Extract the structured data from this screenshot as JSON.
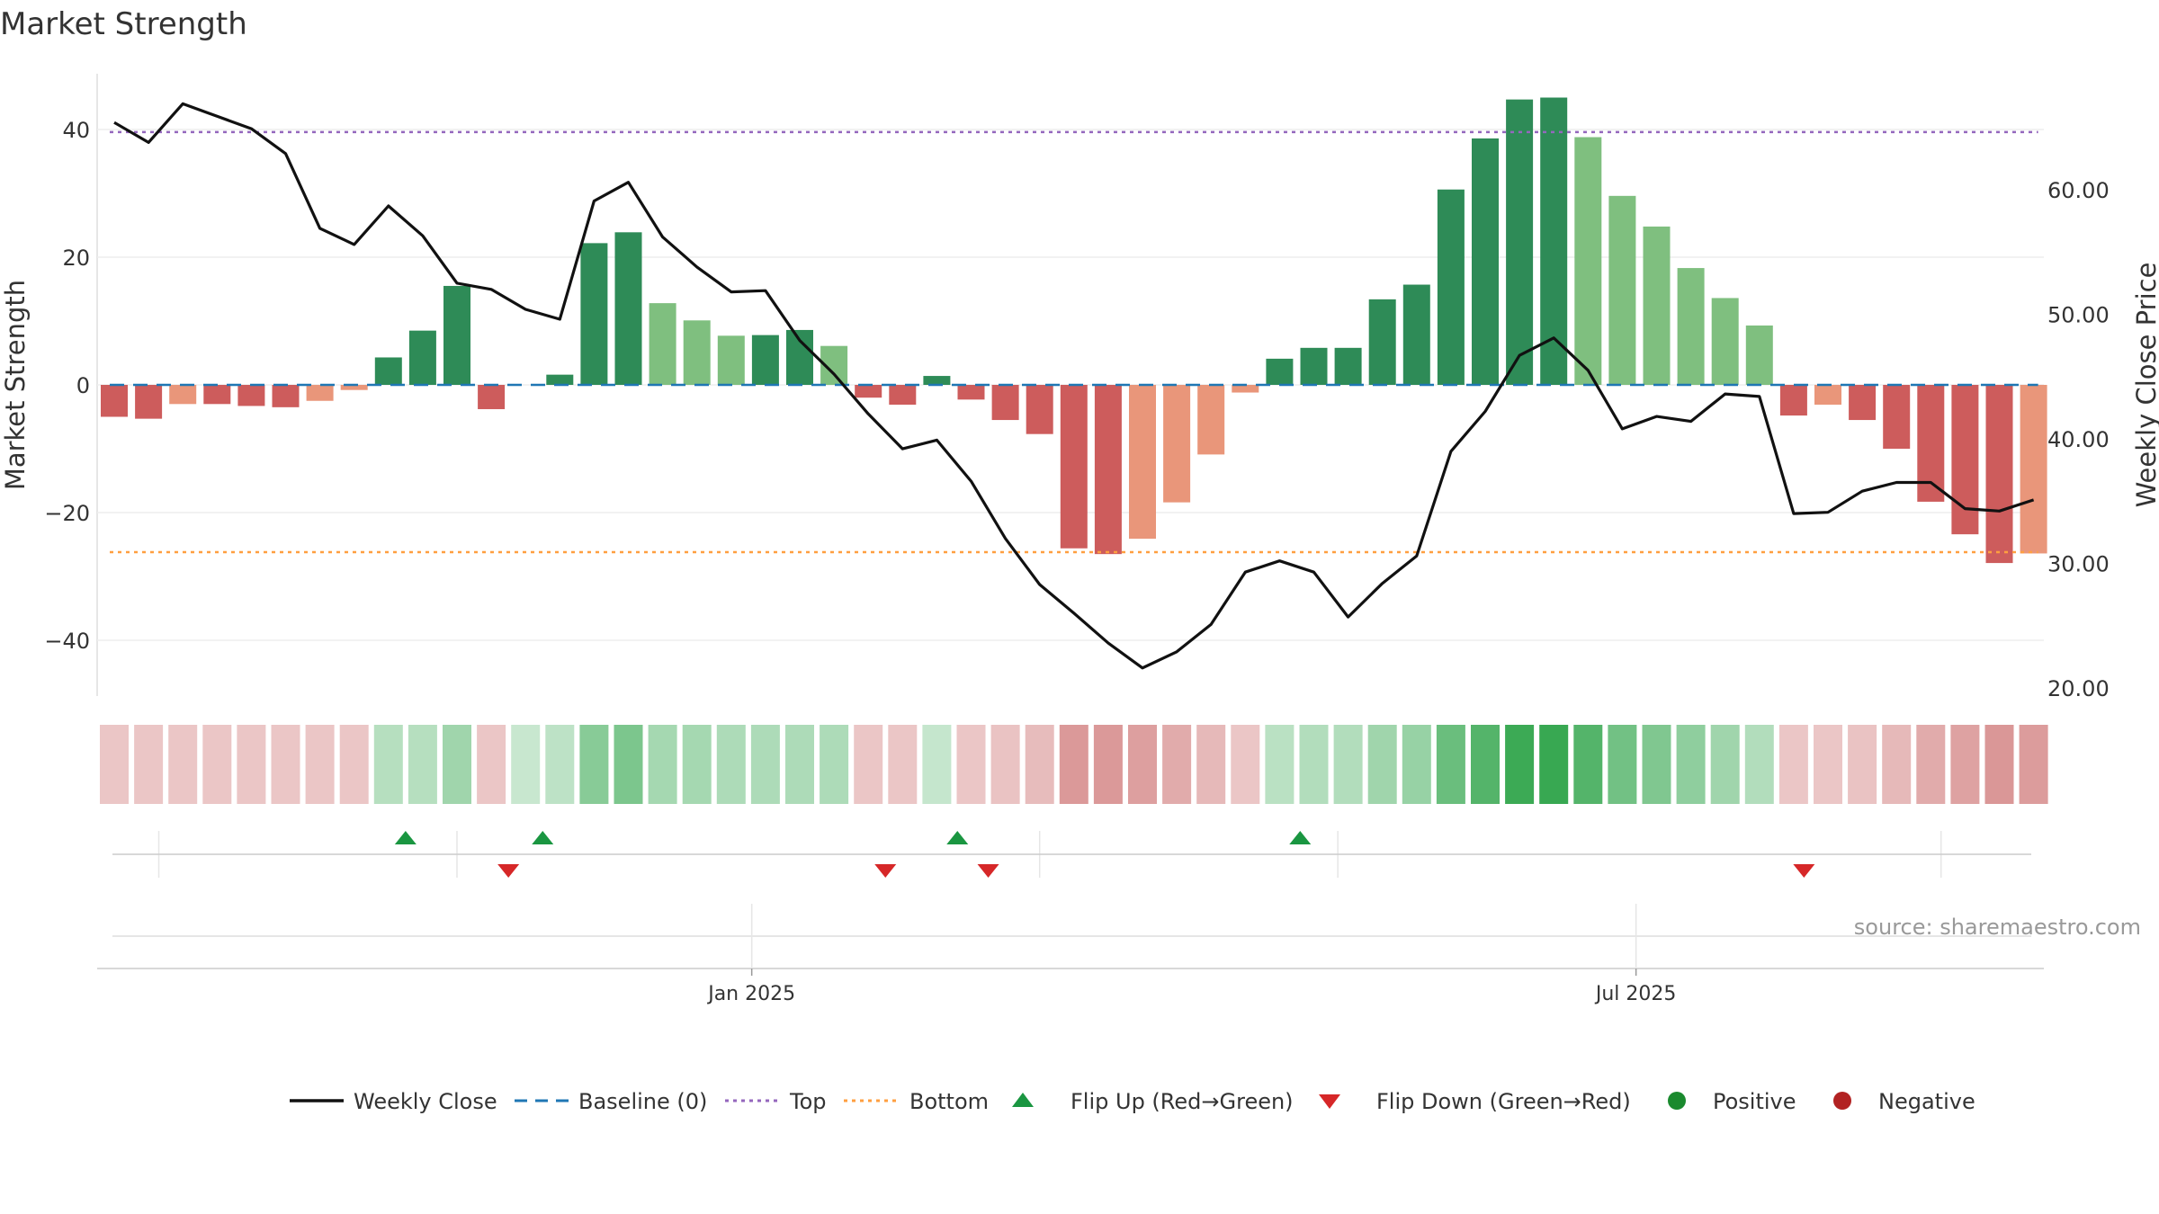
{
  "chart_data": {
    "type": "bar+line",
    "title": "Market Strength",
    "ylabel_left": "Market Strength",
    "ylabel_right": "Weekly Close Price",
    "ylim_left": [
      -49,
      49
    ],
    "ylim_right": [
      19.0,
      69.0
    ],
    "yticks_left": [
      {
        "value": 40,
        "label": "40"
      },
      {
        "value": 20,
        "label": "20"
      },
      {
        "value": 0,
        "label": "0"
      },
      {
        "value": -20,
        "label": "−20"
      },
      {
        "value": -40,
        "label": "−40"
      }
    ],
    "yticks_right": [
      {
        "value": 60,
        "label": "60.00"
      },
      {
        "value": 50,
        "label": "50.00"
      },
      {
        "value": 40,
        "label": "40.00"
      },
      {
        "value": 30,
        "label": "30.00"
      },
      {
        "value": 20,
        "label": "20.00"
      }
    ],
    "date_ticks": [
      {
        "week": 18.6,
        "label": "Jan 2025"
      },
      {
        "week": 44.4,
        "label": "Jul 2025"
      }
    ],
    "minor_grid_weeks": [
      1.3,
      10.0,
      27.0,
      35.7,
      53.3
    ],
    "top_level": 39.6,
    "bottom_level": -26.2,
    "strength": [
      -5,
      -5.3,
      -3,
      -3,
      -3.3,
      -3.5,
      -2.5,
      -0.8,
      4.3,
      8.5,
      15.5,
      -3.8,
      0,
      1.6,
      22.2,
      23.9,
      12.8,
      10.1,
      7.7,
      7.8,
      8.6,
      6.1,
      -2,
      -3.1,
      1.4,
      -2.3,
      -5.5,
      -7.7,
      -25.6,
      -26.5,
      -24.1,
      -18.4,
      -10.9,
      -1.2,
      4.1,
      5.8,
      5.8,
      13.4,
      15.7,
      30.6,
      38.6,
      44.7,
      45,
      38.8,
      29.6,
      24.8,
      18.3,
      13.6,
      9.3,
      -4.8,
      -3.1,
      -5.5,
      -10,
      -18.3,
      -23.4,
      -27.9,
      -26.4
    ],
    "bar_tone": [
      "red",
      "red",
      "salmon",
      "red",
      "red",
      "red",
      "salmon",
      "salmon",
      "dark",
      "dark",
      "dark",
      "red",
      "none",
      "dark",
      "dark",
      "dark",
      "light",
      "light",
      "light",
      "dark",
      "dark",
      "light",
      "red",
      "red",
      "dark",
      "red",
      "red",
      "red",
      "red",
      "red",
      "salmon",
      "salmon",
      "salmon",
      "salmon",
      "dark",
      "dark",
      "dark",
      "dark",
      "dark",
      "dark",
      "dark",
      "dark",
      "dark",
      "light",
      "light",
      "light",
      "light",
      "light",
      "light",
      "red",
      "salmon",
      "red",
      "red",
      "red",
      "red",
      "red",
      "salmon"
    ],
    "weekly_close": [
      65.4,
      63.8,
      66.9,
      65.9,
      64.9,
      62.9,
      56.9,
      55.6,
      58.7,
      56.3,
      52.5,
      52.0,
      50.4,
      49.6,
      59.1,
      60.6,
      56.2,
      53.8,
      51.8,
      51.9,
      47.9,
      45.2,
      42.0,
      39.2,
      39.9,
      36.6,
      32.0,
      28.3,
      26.0,
      23.6,
      21.6,
      22.9,
      25.1,
      29.3,
      30.2,
      29.3,
      25.7,
      28.4,
      30.6,
      39.0,
      42.2,
      46.7,
      48.1,
      45.5,
      40.8,
      41.8,
      41.4,
      43.6,
      43.4,
      34.0,
      34.1,
      35.8,
      36.5,
      36.5,
      34.4,
      34.2,
      35.1
    ],
    "heat_strip": [
      -1,
      -1,
      -1,
      -1,
      -1,
      -1,
      -1,
      -1,
      1,
      1,
      1.6,
      -1,
      0.5,
      0.8,
      2.2,
      2.5,
      1.4,
      1.4,
      1.2,
      1.2,
      1.2,
      1.2,
      -1,
      -1,
      0.6,
      -1,
      -1.1,
      -1.3,
      -2.5,
      -2.5,
      -2.3,
      -1.9,
      -1.4,
      -1,
      0.9,
      1.1,
      1.1,
      1.6,
      1.8,
      3,
      3.6,
      4.2,
      4.3,
      3.6,
      2.8,
      2.4,
      2,
      1.6,
      1.1,
      -1,
      -1,
      -1.1,
      -1.4,
      -1.9,
      -2.2,
      -2.6,
      -2.4
    ],
    "flip_up_weeks": [
      8.5,
      12.5,
      24.6,
      34.6
    ],
    "flip_down_weeks": [
      11.5,
      22.5,
      25.5,
      49.3
    ],
    "colors": {
      "dark_green": "#2e8b57",
      "light_green": "#7fbf7f",
      "red": "#cd5c5c",
      "salmon": "#e9967a",
      "line": "#111111",
      "baseline": "#1f77b4",
      "top": "#9467bd",
      "bottom": "#ff9f40",
      "flip_up": "#1a9641",
      "flip_down": "#d62728",
      "heat_green": "#38a852",
      "heat_red": "#c86464",
      "positive_dot": "#1a8a2e",
      "negative_dot": "#b22222"
    }
  },
  "source": "source: sharemaestro.com",
  "legend": [
    {
      "key": "weekly_close",
      "label": "Weekly Close",
      "icon": "solid-line"
    },
    {
      "key": "baseline",
      "label": "Baseline (0)",
      "icon": "dashed-line"
    },
    {
      "key": "top",
      "label": "Top",
      "icon": "dotted-line"
    },
    {
      "key": "bottom",
      "label": "Bottom",
      "icon": "dotted-line"
    },
    {
      "key": "flip_up",
      "label": "Flip Up (Red→Green)",
      "icon": "triangle-up"
    },
    {
      "key": "flip_down",
      "label": "Flip Down (Green→Red)",
      "icon": "triangle-down"
    },
    {
      "key": "positive",
      "label": "Positive",
      "icon": "dot"
    },
    {
      "key": "negative",
      "label": "Negative",
      "icon": "dot"
    }
  ]
}
